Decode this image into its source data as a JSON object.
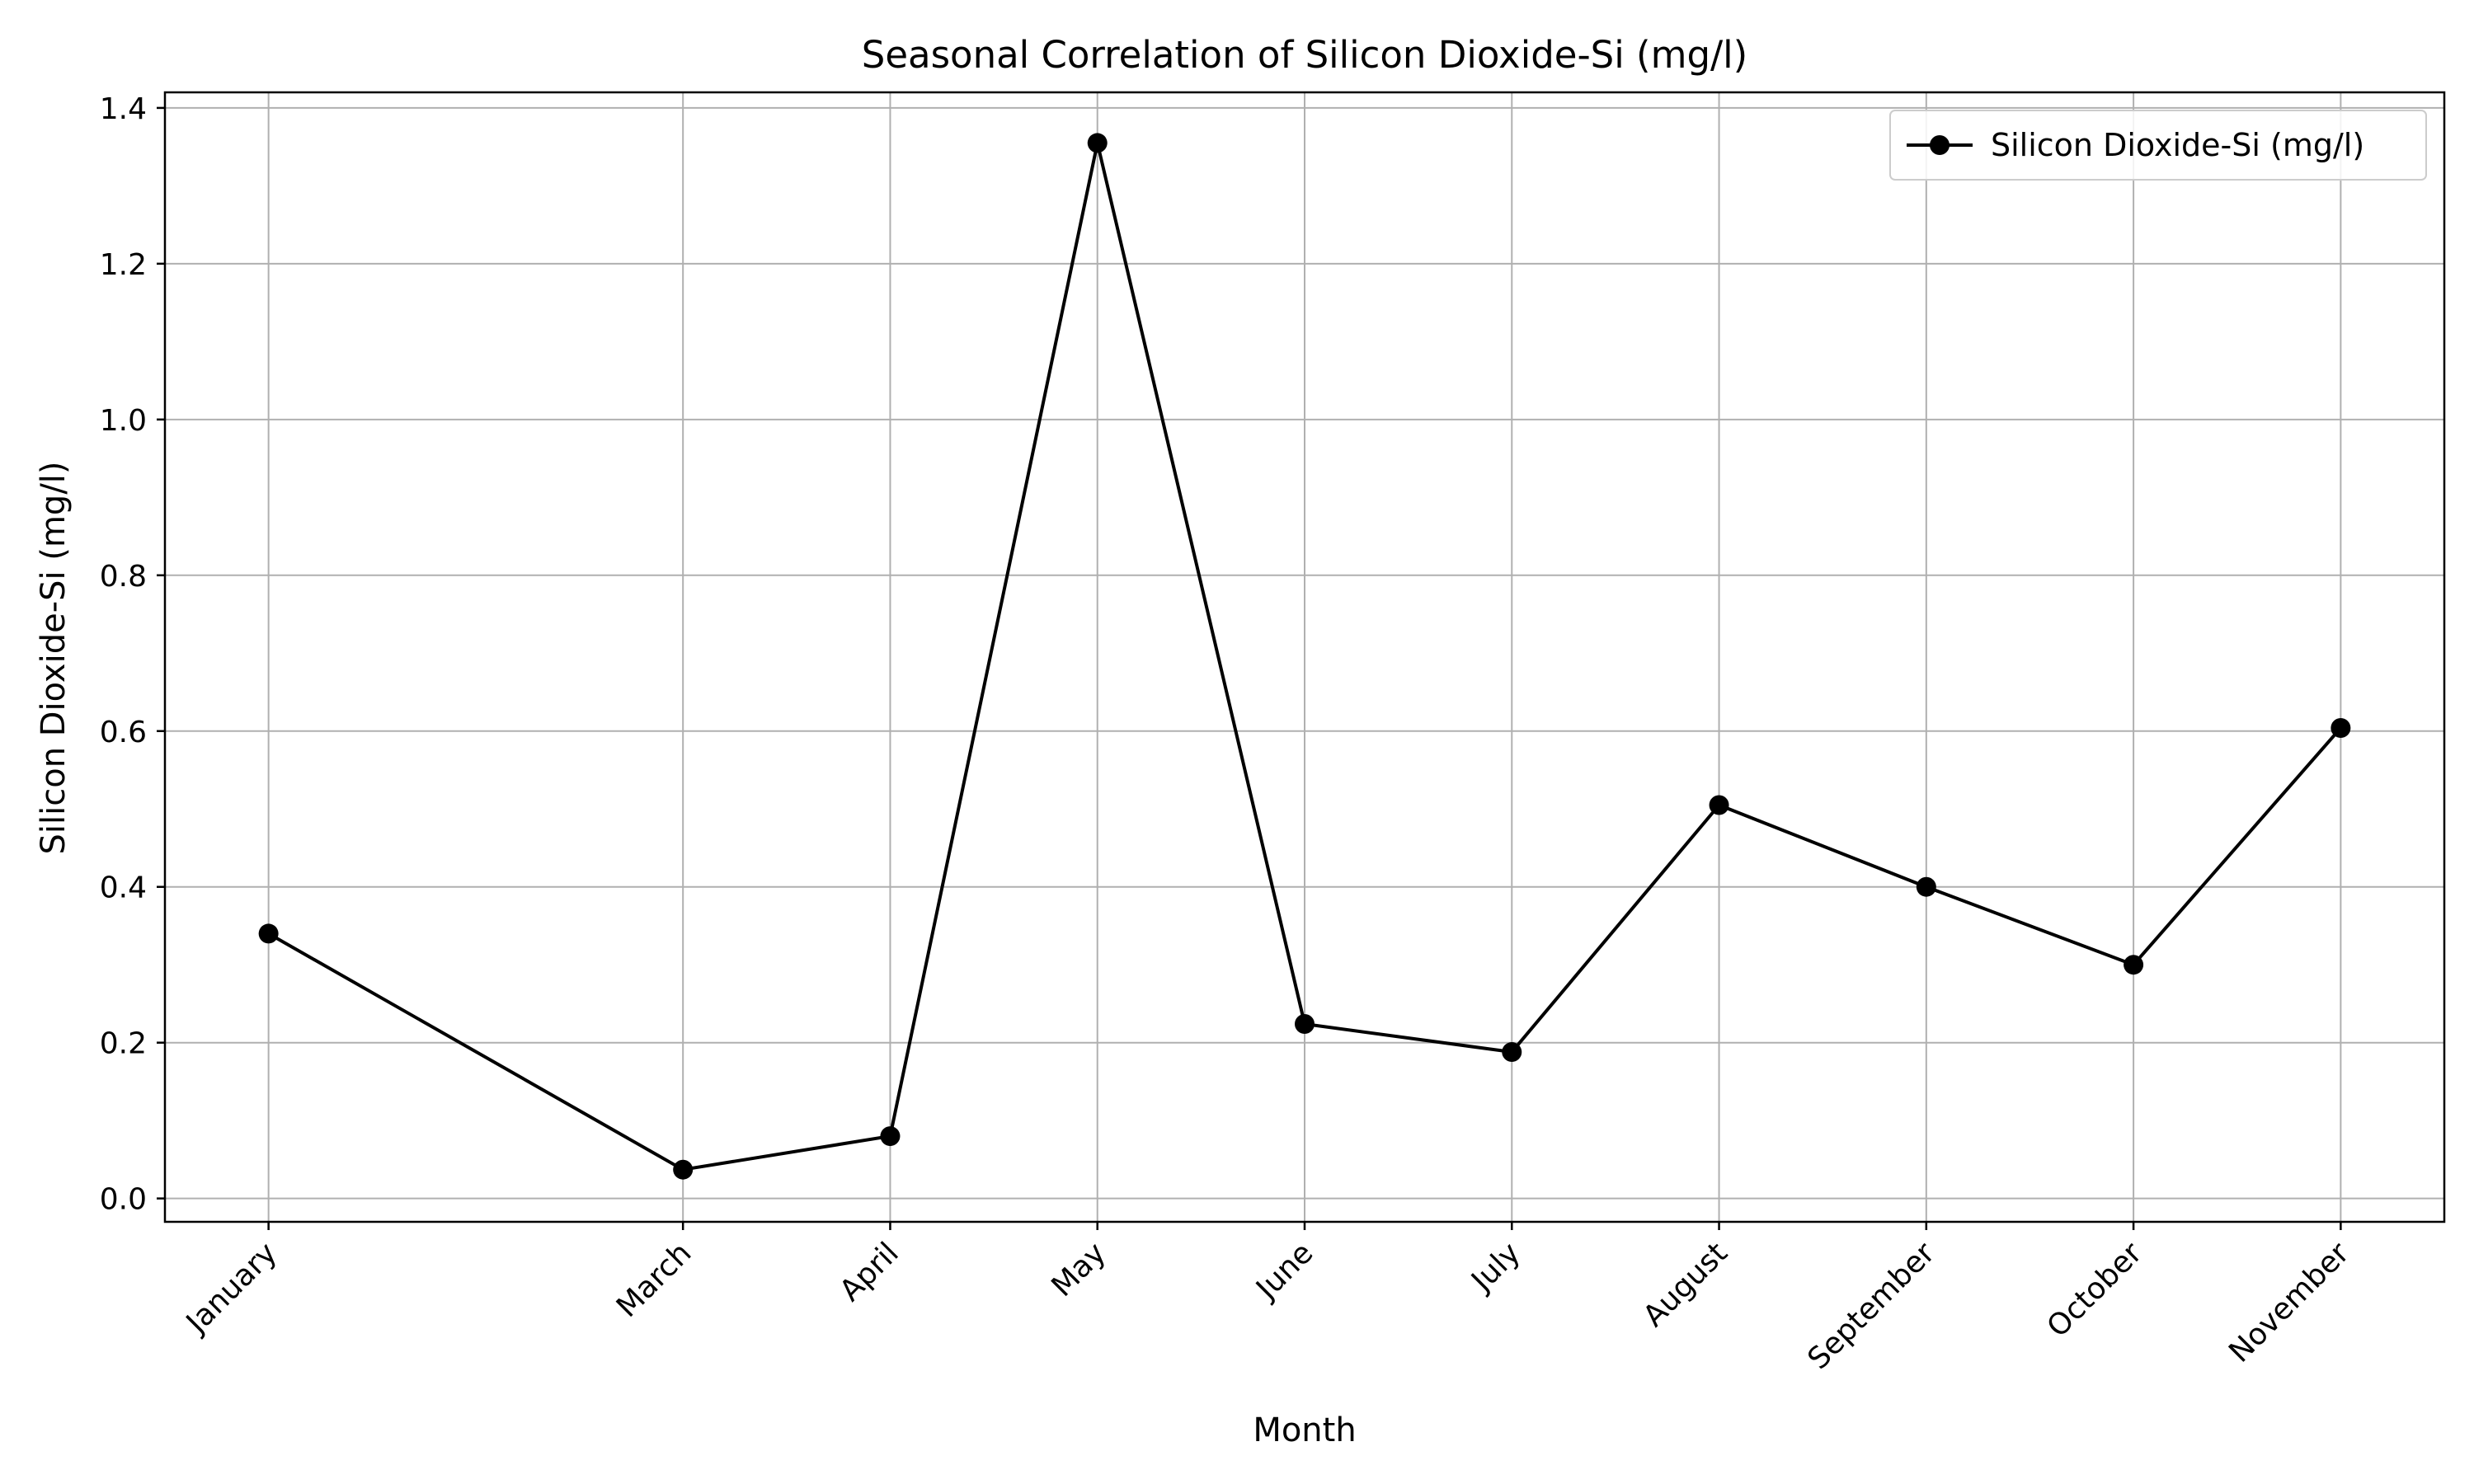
{
  "chart_data": {
    "type": "line",
    "title": "Seasonal Correlation of Silicon Dioxide-Si (mg/l)",
    "xlabel": "Month",
    "ylabel": "Silicon Dioxide-Si (mg/l)",
    "categories": [
      "January",
      "March",
      "April",
      "May",
      "June",
      "July",
      "August",
      "September",
      "October",
      "November"
    ],
    "month_index": [
      1,
      3,
      4,
      5,
      6,
      7,
      8,
      9,
      10,
      11
    ],
    "series": [
      {
        "name": "Silicon Dioxide-Si (mg/l)",
        "color": "#000000",
        "marker": "circle",
        "values": [
          0.34,
          0.037,
          0.08,
          1.355,
          0.224,
          0.188,
          0.505,
          0.4,
          0.3,
          0.604
        ]
      }
    ],
    "ylim": [
      -0.03,
      1.42
    ],
    "yticks": [
      0.0,
      0.2,
      0.4,
      0.6,
      0.8,
      1.0,
      1.2,
      1.4
    ],
    "xlim": [
      0.5,
      11.5
    ],
    "grid": true,
    "legend": "top-right"
  }
}
